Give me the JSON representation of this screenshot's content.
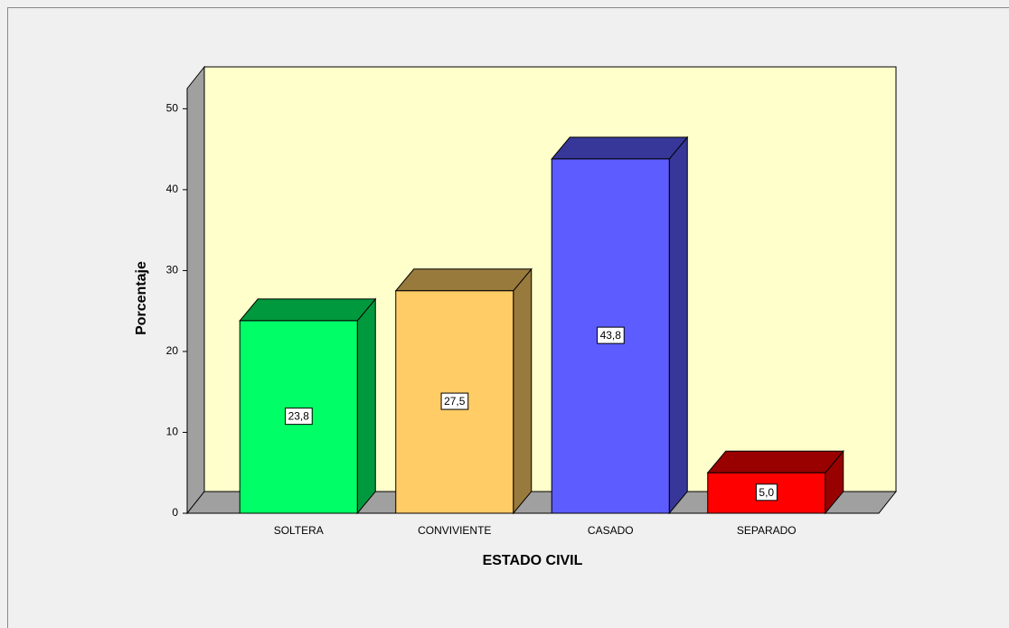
{
  "chart_data": {
    "type": "bar3d",
    "categories": [
      "SOLTERA",
      "CONVIVIENTE",
      "CASADO",
      "SEPARADO"
    ],
    "values": [
      23.8,
      27.5,
      43.8,
      5.0
    ],
    "value_labels": [
      "23,8",
      "27,5",
      "43,8",
      "5,0"
    ],
    "colors": [
      "#00ff66",
      "#ffcc66",
      "#5c5cff",
      "#ff0000"
    ],
    "x_label": "ESTADO CIVIL",
    "y_label": "Porcentaje",
    "ylim": [
      0,
      52.5
    ],
    "yticks": [
      0,
      10,
      20,
      30,
      40,
      50
    ],
    "wall_color": "#ffffcc"
  }
}
